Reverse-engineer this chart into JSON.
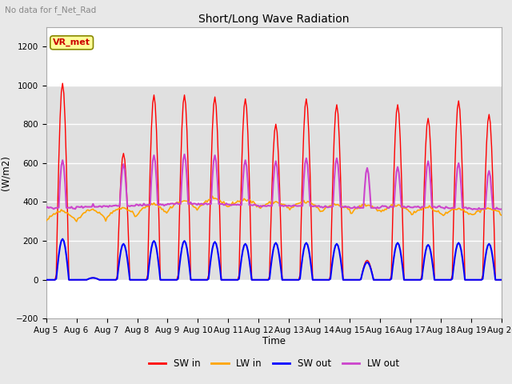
{
  "title": "Short/Long Wave Radiation",
  "subtitle": "No data for f_Net_Rad",
  "xlabel": "Time",
  "ylabel": "(W/m2)",
  "ylim": [
    -200,
    1300
  ],
  "yticks": [
    -200,
    0,
    200,
    400,
    600,
    800,
    1000,
    1200
  ],
  "date_start": 5,
  "date_end": 20,
  "colors": {
    "SW_in": "#ff0000",
    "LW_in": "#ffa500",
    "SW_out": "#0000ff",
    "LW_out": "#cc44cc"
  },
  "legend_label": "VR_met",
  "legend_label_color": "#cc0000",
  "legend_box_color": "#ffff99",
  "fig_bg_color": "#e8e8e8",
  "plot_bg_color": "#ffffff",
  "band_color": "#e0e0e0",
  "grid_color": "#e8e8e8"
}
